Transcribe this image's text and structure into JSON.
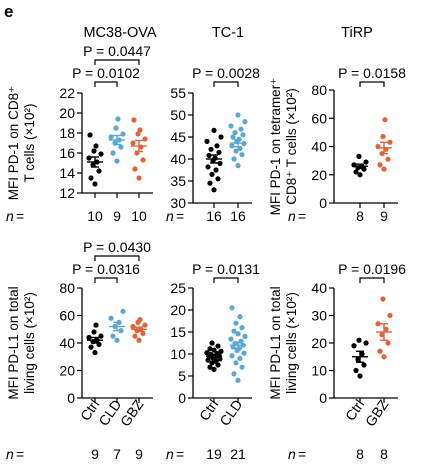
{
  "panel_label": "e",
  "colors": {
    "Ctrl": "#000000",
    "CLD": "#5ba7d4",
    "GBZ": "#e0643a"
  },
  "columns": [
    {
      "title": "MC38-OVA"
    },
    {
      "title": "TC-1"
    },
    {
      "title": "TiRP"
    }
  ],
  "chart_data": [
    {
      "type": "scatter",
      "id": "mc38-pd1",
      "column": 0,
      "row": 0,
      "ylabel": [
        "MFI PD-1 on CD8⁺",
        "T cells (×10²)"
      ],
      "ylim": [
        12,
        22
      ],
      "yticks": [
        12,
        14,
        16,
        18,
        20,
        22
      ],
      "categories": [
        "Ctrl",
        "CLD",
        "GBZ"
      ],
      "show_categories": false,
      "n": [
        "10",
        "9",
        "10"
      ],
      "series": [
        {
          "values": [
            12.9,
            13.5,
            14.2,
            14.8,
            15.1,
            15.5,
            15.9,
            16.2,
            16.7,
            17.8
          ],
          "mean": 15.1,
          "sem": 0.5
        },
        {
          "values": [
            15.2,
            16.0,
            16.6,
            17.0,
            17.3,
            17.6,
            17.9,
            18.5,
            19.4
          ],
          "mean": 17.3,
          "sem": 0.45
        },
        {
          "values": [
            13.5,
            14.4,
            15.3,
            16.0,
            16.6,
            17.0,
            17.4,
            17.9,
            18.3,
            19.3
          ],
          "mean": 16.7,
          "sem": 0.55
        }
      ],
      "brackets": [
        {
          "from": 0,
          "to": 2,
          "label": "P = 0.0447"
        },
        {
          "from": 0,
          "to": 1,
          "label": "P = 0.0102"
        }
      ]
    },
    {
      "type": "scatter",
      "id": "tc1-pd1",
      "column": 1,
      "row": 0,
      "ylabel": [],
      "ylim": [
        30,
        55
      ],
      "yticks": [
        30,
        35,
        40,
        45,
        50,
        55
      ],
      "categories": [
        "Ctrl",
        "CLD"
      ],
      "show_categories": false,
      "n": [
        "16",
        "16"
      ],
      "series": [
        {
          "values": [
            33.0,
            34.5,
            35.5,
            36.5,
            37.5,
            38.2,
            39.0,
            39.6,
            40.2,
            40.8,
            41.5,
            42.2,
            43.0,
            44.0,
            45.0,
            46.5
          ],
          "mean": 40.0,
          "sem": 0.9
        },
        {
          "values": [
            38.5,
            40.0,
            41.0,
            41.8,
            42.4,
            43.0,
            43.5,
            44.0,
            44.5,
            45.0,
            45.5,
            46.0,
            46.8,
            47.5,
            48.5,
            50.0
          ],
          "mean": 43.6,
          "sem": 0.8
        }
      ],
      "brackets": [
        {
          "from": 0,
          "to": 1,
          "label": "P = 0.0028"
        }
      ]
    },
    {
      "type": "scatter",
      "id": "tirp-pd1",
      "column": 2,
      "row": 0,
      "ylabel": [
        "MFI PD-1 on tetramer⁺",
        "CD8⁺ T cells (×10²)"
      ],
      "ylim": [
        0,
        80
      ],
      "yticks": [
        0,
        20,
        40,
        60,
        80
      ],
      "categories": [
        "Ctrl",
        "GBZ"
      ],
      "show_categories": false,
      "n": [
        "8",
        "9"
      ],
      "series": [
        {
          "values": [
            20,
            22,
            24,
            25,
            26,
            27,
            29,
            33
          ],
          "mean": 26,
          "sem": 1.5
        },
        {
          "values": [
            24,
            27,
            31,
            35,
            38,
            40,
            43,
            47,
            59
          ],
          "mean": 39,
          "sem": 4
        }
      ],
      "brackets": [
        {
          "from": 0,
          "to": 1,
          "label": "P = 0.0158"
        }
      ]
    },
    {
      "type": "scatter",
      "id": "mc38-pdl1",
      "column": 0,
      "row": 1,
      "ylabel": [
        "MFI PD-L1 on total",
        "living cells (×10²)"
      ],
      "ylim": [
        0,
        80
      ],
      "yticks": [
        0,
        20,
        40,
        60,
        80
      ],
      "categories": [
        "Ctrl",
        "CLD",
        "GBZ"
      ],
      "show_categories": true,
      "n": [
        "9",
        "7",
        "9"
      ],
      "series": [
        {
          "values": [
            33,
            37,
            39,
            41,
            42,
            44,
            45,
            48,
            53
          ],
          "mean": 42,
          "sem": 2
        },
        {
          "values": [
            42,
            45,
            49,
            52,
            55,
            58,
            63
          ],
          "mean": 52,
          "sem": 3
        },
        {
          "values": [
            42,
            45,
            47,
            49,
            50,
            52,
            53,
            55,
            57
          ],
          "mean": 50,
          "sem": 1.5
        }
      ],
      "brackets": [
        {
          "from": 0,
          "to": 2,
          "label": "P = 0.0430"
        },
        {
          "from": 0,
          "to": 1,
          "label": "P = 0.0316"
        }
      ]
    },
    {
      "type": "scatter",
      "id": "tc1-pdl1",
      "column": 1,
      "row": 1,
      "ylabel": [],
      "ylim": [
        0,
        25
      ],
      "yticks": [
        0,
        5,
        10,
        15,
        20,
        25
      ],
      "categories": [
        "Ctrl",
        "CLD"
      ],
      "show_categories": true,
      "n": [
        "19",
        "21"
      ],
      "series": [
        {
          "values": [
            6.5,
            7.0,
            7.5,
            8.0,
            8.3,
            8.6,
            8.9,
            9.1,
            9.3,
            9.5,
            9.7,
            9.9,
            10.1,
            10.3,
            10.6,
            10.9,
            11.2,
            11.8,
            12.5
          ],
          "mean": 9.5,
          "sem": 0.35
        },
        {
          "values": [
            4.0,
            5.5,
            7.0,
            8.0,
            9.0,
            9.6,
            10.2,
            10.8,
            11.2,
            11.6,
            12.0,
            12.4,
            12.9,
            13.4,
            14.0,
            14.6,
            15.2,
            16.0,
            17.0,
            18.5,
            20.5
          ],
          "mean": 12.0,
          "sem": 0.7
        }
      ],
      "brackets": [
        {
          "from": 0,
          "to": 1,
          "label": "P = 0.0131"
        }
      ]
    },
    {
      "type": "scatter",
      "id": "tirp-pdl1",
      "column": 2,
      "row": 1,
      "ylabel": [
        "MFI PD-L1 on total",
        "living cells (×10²)"
      ],
      "ylim": [
        0,
        40
      ],
      "yticks": [
        0,
        10,
        20,
        30,
        40
      ],
      "categories": [
        "Ctrl",
        "GBZ"
      ],
      "show_categories": true,
      "n": [
        "8",
        "8"
      ],
      "series": [
        {
          "values": [
            8,
            10,
            12,
            14,
            16,
            19,
            20,
            21
          ],
          "mean": 15,
          "sem": 2
        },
        {
          "values": [
            15,
            17,
            20,
            23,
            25,
            27,
            30,
            36
          ],
          "mean": 24,
          "sem": 3
        }
      ],
      "brackets": [
        {
          "from": 0,
          "to": 1,
          "label": "P = 0.0196"
        }
      ]
    }
  ]
}
